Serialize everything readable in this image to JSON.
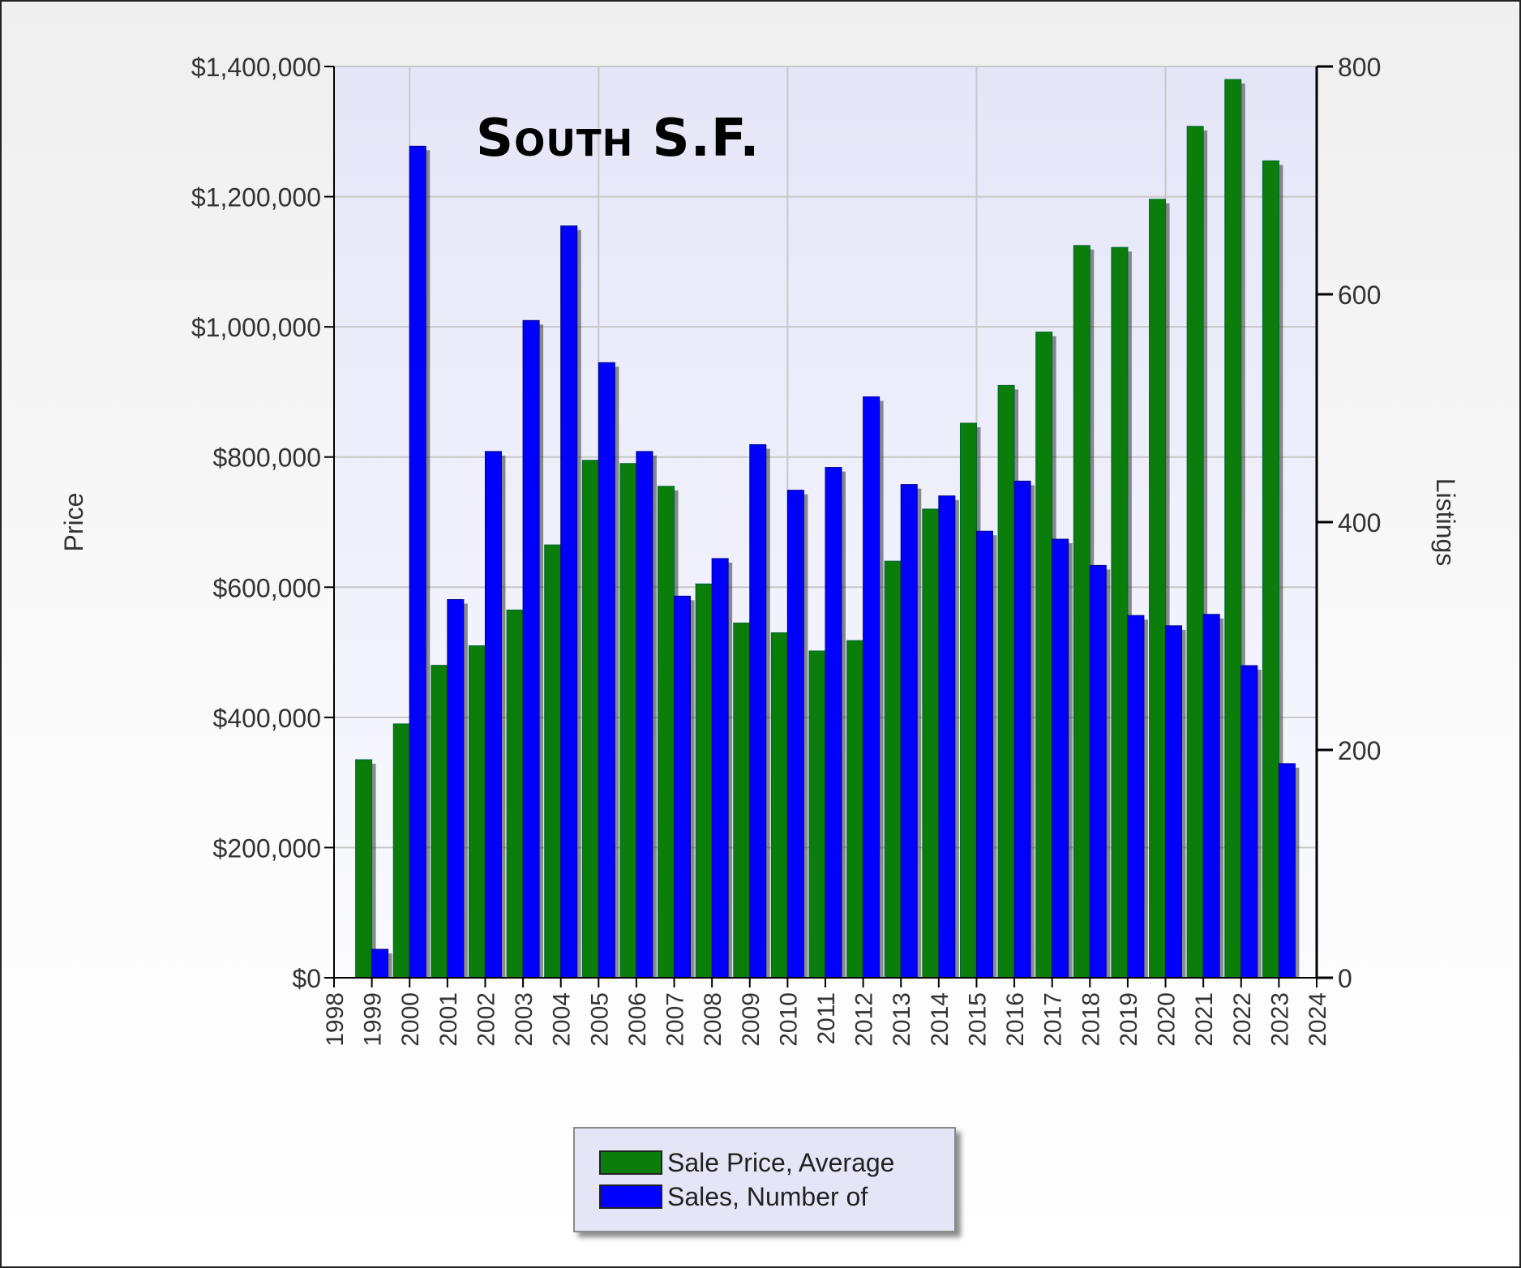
{
  "chart_data": {
    "type": "bar",
    "title": "South S.F.",
    "ylabel": "Price",
    "y2label": "Listings",
    "xlabel": "",
    "x_ticks": [
      "1998",
      "1999",
      "2000",
      "2001",
      "2002",
      "2003",
      "2004",
      "2005",
      "2006",
      "2007",
      "2008",
      "2009",
      "2010",
      "2011",
      "2012",
      "2013",
      "2014",
      "2015",
      "2016",
      "2017",
      "2018",
      "2019",
      "2020",
      "2021",
      "2022",
      "2023",
      "2024"
    ],
    "categories": [
      "1999",
      "2000",
      "2001",
      "2002",
      "2003",
      "2004",
      "2005",
      "2006",
      "2007",
      "2008",
      "2009",
      "2010",
      "2011",
      "2012",
      "2013",
      "2014",
      "2015",
      "2016",
      "2017",
      "2018",
      "2019",
      "2020",
      "2021",
      "2022",
      "2023"
    ],
    "ylim": [
      0,
      1400000
    ],
    "y2lim": [
      0,
      800
    ],
    "y_ticks": [
      "$0",
      "$200,000",
      "$400,000",
      "$600,000",
      "$800,000",
      "$1,000,000",
      "$1,200,000",
      "$1,400,000"
    ],
    "y2_ticks": [
      "0",
      "200",
      "400",
      "600",
      "800"
    ],
    "grid": true,
    "legend_position": "bottom",
    "series": [
      {
        "name": "Sale Price, Average",
        "axis": "left",
        "color": "#0a7d0a",
        "values": [
          335000,
          390000,
          480000,
          510000,
          565000,
          665000,
          795000,
          790000,
          755000,
          605000,
          545000,
          530000,
          502000,
          518000,
          640000,
          720000,
          852000,
          910000,
          992000,
          1125000,
          1122000,
          1196000,
          1308000,
          1380000,
          1255000
        ]
      },
      {
        "name": "Sales, Number of",
        "axis": "right",
        "color": "#0000ff",
        "values": [
          25,
          730,
          332,
          462,
          577,
          660,
          540,
          462,
          335,
          368,
          468,
          428,
          448,
          510,
          433,
          423,
          392,
          436,
          385,
          362,
          318,
          309,
          319,
          274,
          188
        ]
      }
    ]
  }
}
